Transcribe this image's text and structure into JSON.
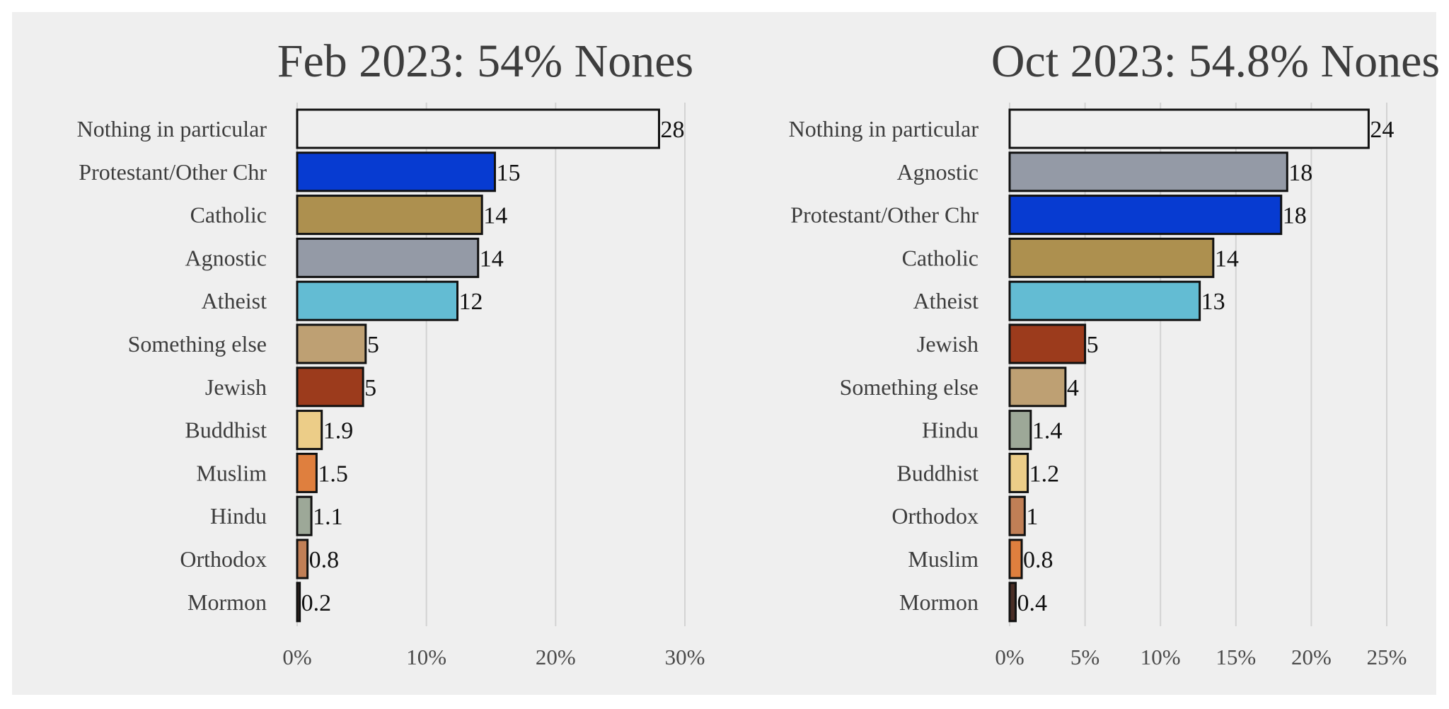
{
  "chart_data": [
    {
      "type": "bar",
      "orientation": "horizontal",
      "title": "Feb 2023: 54% Nones",
      "xlabel": "",
      "ylabel": "",
      "xlim": [
        0,
        30
      ],
      "x_ticks": [
        "0%",
        "10%",
        "20%",
        "30%"
      ],
      "x_tick_values": [
        0,
        10,
        20,
        30
      ],
      "grid": true,
      "categories": [
        "Nothing in particular",
        "Protestant/Other Chr",
        "Catholic",
        "Agnostic",
        "Atheist",
        "Something else",
        "Jewish",
        "Buddhist",
        "Muslim",
        "Hindu",
        "Orthodox",
        "Mormon"
      ],
      "values": [
        28.0,
        15.3,
        14.3,
        14.0,
        12.4,
        5.3,
        5.1,
        1.9,
        1.5,
        1.1,
        0.8,
        0.2
      ],
      "labels": [
        "28",
        "15",
        "14",
        "14",
        "12",
        "5",
        "5",
        "1.9",
        "1.5",
        "1.1",
        "0.8",
        "0.2"
      ],
      "colors": [
        "#efefef",
        "#073bd1",
        "#ad904f",
        "#949aa6",
        "#63bcd3",
        "#bea073",
        "#9c3b1c",
        "#eccd88",
        "#df7f3e",
        "#9da898",
        "#c17f56",
        "#4a2e26"
      ]
    },
    {
      "type": "bar",
      "orientation": "horizontal",
      "title": "Oct 2023: 54.8% Nones",
      "xlabel": "",
      "ylabel": "",
      "xlim": [
        0,
        25
      ],
      "x_ticks": [
        "0%",
        "5%",
        "10%",
        "15%",
        "20%",
        "25%"
      ],
      "x_tick_values": [
        0,
        5,
        10,
        15,
        20,
        25
      ],
      "grid": true,
      "categories": [
        "Nothing in particular",
        "Agnostic",
        "Protestant/Other Chr",
        "Catholic",
        "Atheist",
        "Jewish",
        "Something else",
        "Hindu",
        "Buddhist",
        "Orthodox",
        "Muslim",
        "Mormon"
      ],
      "values": [
        23.8,
        18.4,
        18.0,
        13.5,
        12.6,
        5.0,
        3.7,
        1.4,
        1.2,
        1.0,
        0.8,
        0.4
      ],
      "labels": [
        "24",
        "18",
        "18",
        "14",
        "13",
        "5",
        "4",
        "1.4",
        "1.2",
        "1",
        "0.8",
        "0.4"
      ],
      "colors": [
        "#efefef",
        "#949aa6",
        "#073bd1",
        "#ad904f",
        "#63bcd3",
        "#9c3b1c",
        "#bea073",
        "#9da898",
        "#eccd88",
        "#c17f56",
        "#df7f3e",
        "#4a2e26"
      ]
    }
  ]
}
